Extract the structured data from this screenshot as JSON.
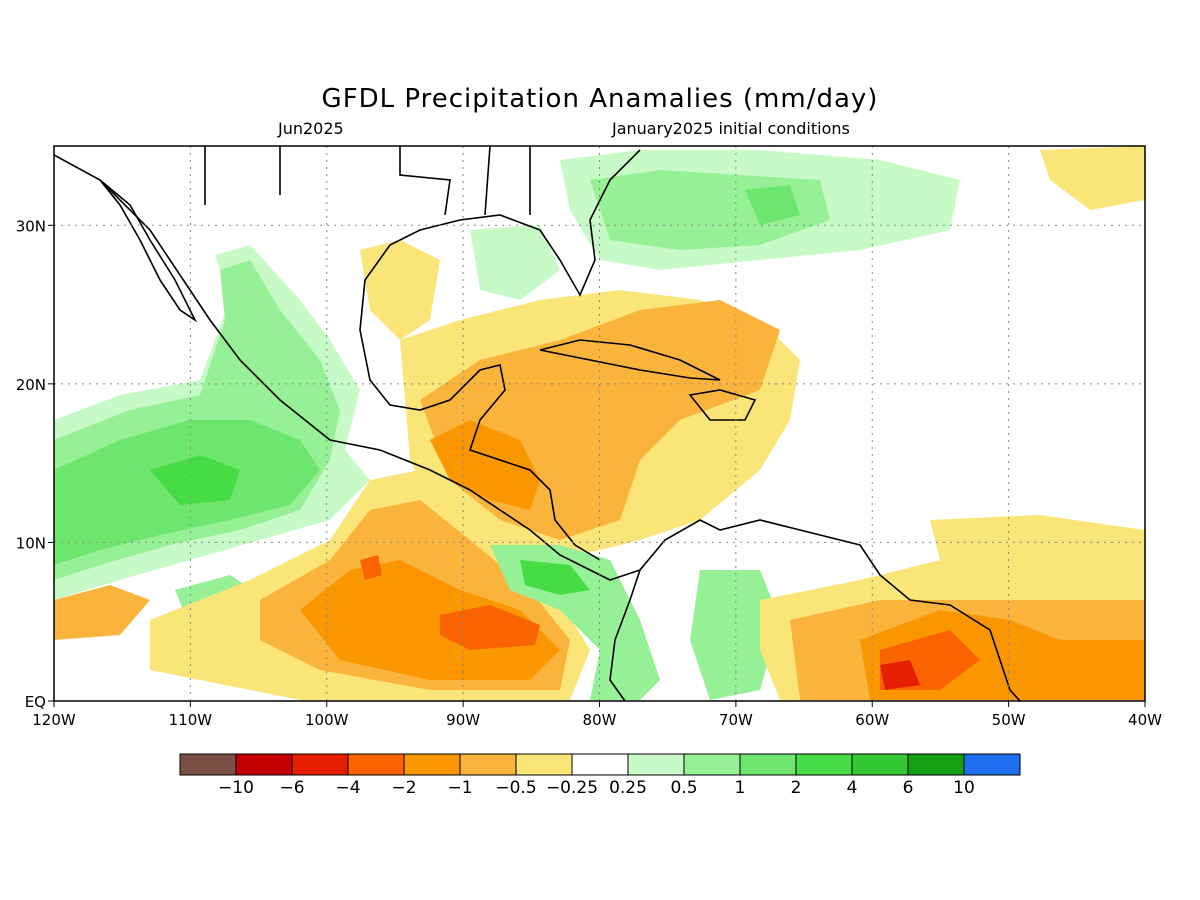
{
  "title": "GFDL Precipitation Anamalies (mm/day)",
  "subtitle_left": "Jun2025",
  "subtitle_right": "January2025 initial conditions",
  "map": {
    "lon_range": [
      -120,
      -40
    ],
    "lat_range": [
      0,
      35
    ],
    "x_ticks": [
      {
        "lon": -120,
        "label": "120W"
      },
      {
        "lon": -110,
        "label": "110W"
      },
      {
        "lon": -100,
        "label": "100W"
      },
      {
        "lon": -90,
        "label": "90W"
      },
      {
        "lon": -80,
        "label": "80W"
      },
      {
        "lon": -70,
        "label": "70W"
      },
      {
        "lon": -60,
        "label": "60W"
      },
      {
        "lon": -50,
        "label": "50W"
      },
      {
        "lon": -40,
        "label": "40W"
      }
    ],
    "y_ticks": [
      {
        "lat": 0,
        "label": "EQ"
      },
      {
        "lat": 10,
        "label": "10N"
      },
      {
        "lat": 20,
        "label": "20N"
      },
      {
        "lat": 30,
        "label": "30N"
      }
    ],
    "grid": "dotted"
  },
  "colorbar": {
    "colors": [
      "#7a5046",
      "#c40000",
      "#e61e00",
      "#fa6400",
      "#fa9600",
      "#fab43c",
      "#fae678",
      "#ffffff",
      "#c8fac8",
      "#96f096",
      "#6ee66e",
      "#46dc46",
      "#32c832",
      "#14a014",
      "#1e6ef0"
    ],
    "labels": [
      "-10",
      "-6",
      "-4",
      "-2",
      "-1",
      "-0.5",
      "-0.25",
      "0.25",
      "0.5",
      "1",
      "2",
      "4",
      "6",
      "10"
    ]
  }
}
